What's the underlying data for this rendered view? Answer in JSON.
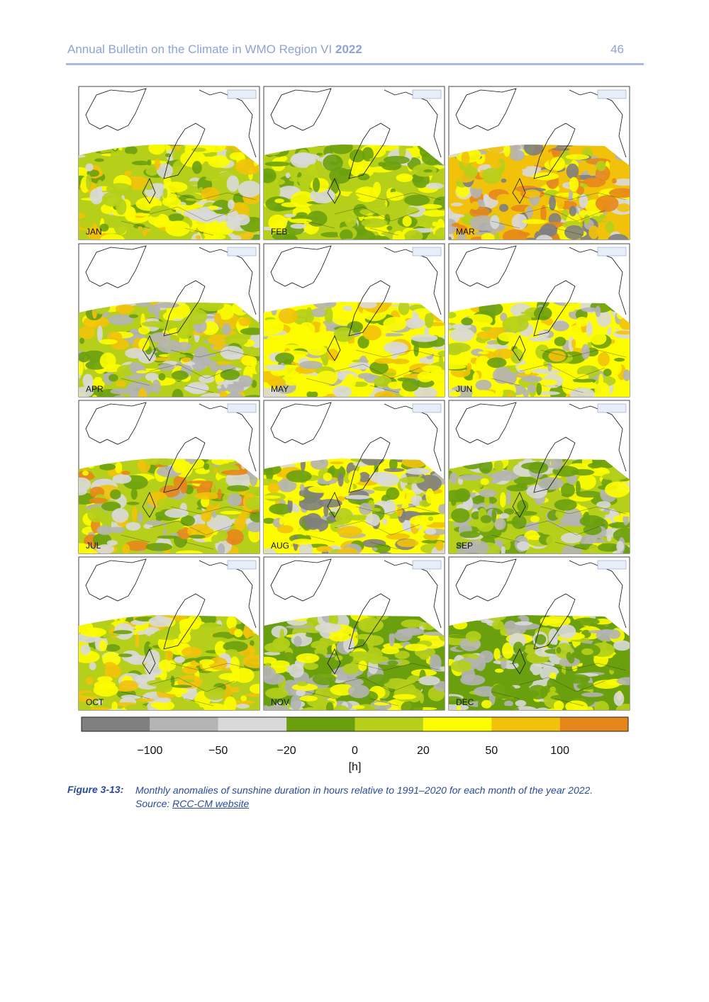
{
  "header": {
    "title": "Annual Bulletin on the Climate in WMO Region VI",
    "year": "2022",
    "page": "46"
  },
  "figure": {
    "panels": [
      "JAN",
      "FEB",
      "MAR",
      "APR",
      "MAY",
      "JUN",
      "JUL",
      "AUG",
      "SEP",
      "OCT",
      "NOV",
      "DEC"
    ],
    "colorbar": {
      "colors": [
        "#808080",
        "#b4b4b4",
        "#d9d9d9",
        "#6aa00e",
        "#b5cf1a",
        "#fdfd00",
        "#f2c20a",
        "#e6871a"
      ],
      "ticks": [
        "−100",
        "−50",
        "−20",
        "0",
        "20",
        "50",
        "100"
      ],
      "unit": "[h]"
    }
  },
  "caption": {
    "label": "Figure 3-13:",
    "text": "Monthly anomalies of sunshine duration in hours relative to 1991–2020 for each month of the year 2022.",
    "source": "Source:",
    "link": "RCC-CM website"
  }
}
